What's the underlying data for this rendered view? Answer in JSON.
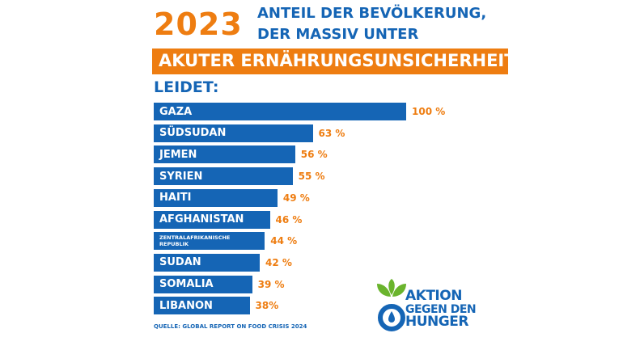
{
  "chart_data": {
    "type": "bar",
    "year": "2023",
    "title_lines": [
      "ANTEIL DER BEVÖLKERUNG,",
      "DER MASSIV UNTER"
    ],
    "highlight": "AKUTER ERNÄHRUNGSUNSICHERHEIT",
    "title_end": "LEIDET:",
    "categories": [
      "GAZA",
      "SÜDSUDAN",
      "JEMEN",
      "SYRIEN",
      "HAITI",
      "AFGHANISTAN",
      "ZENTRALAFRIKANISCHE REPUBLIK",
      "SUDAN",
      "SOMALIA",
      "LIBANON"
    ],
    "values": [
      100,
      63,
      56,
      55,
      49,
      46,
      44,
      42,
      39,
      38
    ],
    "value_labels": [
      "100 %",
      "63 %",
      "56 %",
      "55 %",
      "49 %",
      "46 %",
      "44 %",
      "42 %",
      "39 %",
      "38%"
    ],
    "color": "#1565b5",
    "source": "QUELLE: GLOBAL REPORT ON FOOD CRISIS 2024",
    "logo": [
      "AKTION",
      "GEGEN DEN",
      "HUNGER"
    ]
  }
}
